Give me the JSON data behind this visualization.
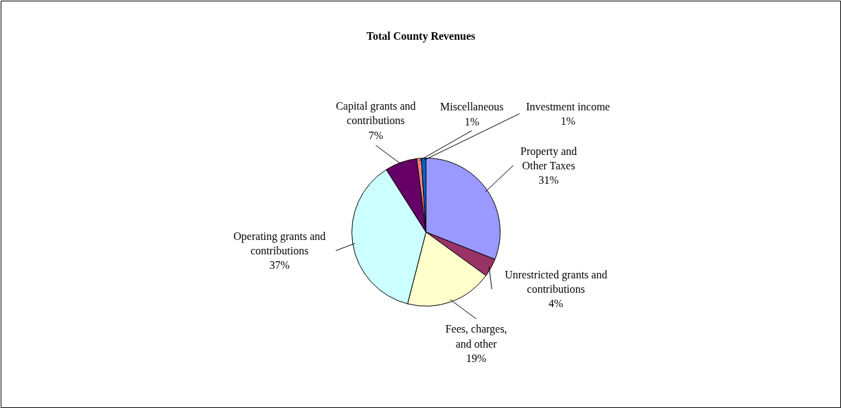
{
  "chart_data": {
    "type": "pie",
    "title": "Total County Revenues",
    "categories": [
      "Property and\nOther Taxes",
      "Unrestricted grants and\ncontributions",
      "Fees, charges,\nand other",
      "Operating grants and\ncontributions",
      "Capital grants and\ncontributions",
      "Miscellaneous",
      "Investment income"
    ],
    "values": [
      31,
      4,
      19,
      37,
      7,
      1,
      1
    ],
    "value_labels": [
      "31%",
      "4%",
      "19%",
      "37%",
      "7%",
      "1%",
      "1%"
    ],
    "colors": [
      "#9999ff",
      "#993366",
      "#ffffcc",
      "#ccffff",
      "#660066",
      "#ff8080",
      "#0066cc"
    ]
  }
}
